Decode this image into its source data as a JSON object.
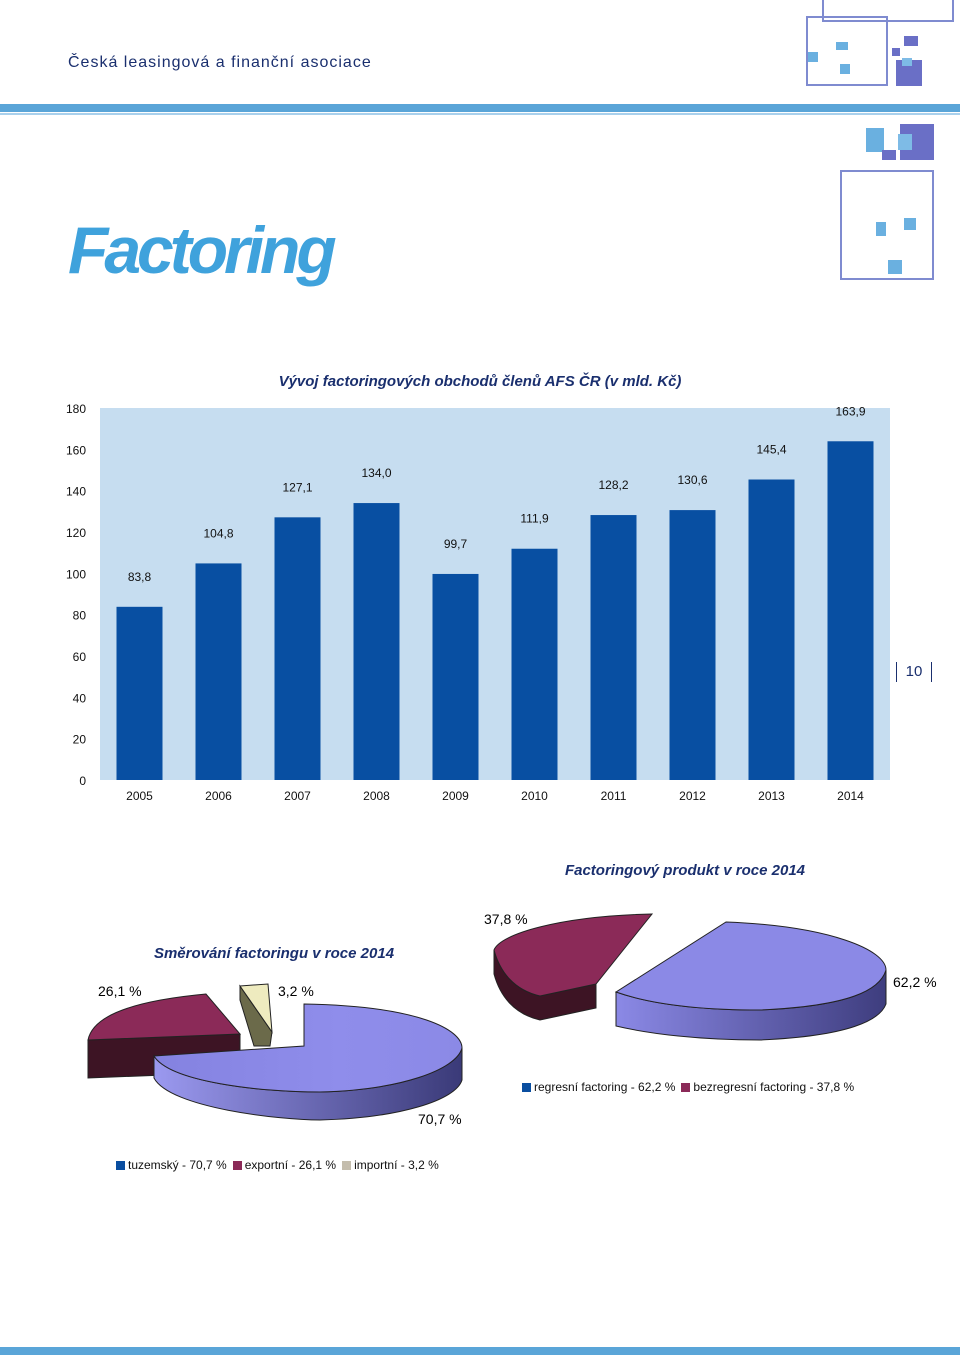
{
  "header": {
    "org_name": "Česká leasingová a finanční asociace"
  },
  "page": {
    "heading": "Factoring",
    "page_number": "10"
  },
  "colors": {
    "bar": "#084fa2",
    "plot_bg": "#c6ddf0",
    "light_purple": "#8b89e6",
    "wine": "#8b2a58",
    "beige": "#eeebbf",
    "accent_blue": "#5aa5d8"
  },
  "chart_data": [
    {
      "type": "bar",
      "title": "Vývoj factoringových obchodů členů AFS ČR (v mld. Kč)",
      "categories": [
        "2005",
        "2006",
        "2007",
        "2008",
        "2009",
        "2010",
        "2011",
        "2012",
        "2013",
        "2014"
      ],
      "values": [
        83.8,
        104.8,
        127.1,
        134.0,
        99.7,
        111.9,
        128.2,
        130.6,
        145.4,
        163.9
      ],
      "data_labels": [
        "83,8",
        "104,8",
        "127,1",
        "134,0",
        "99,7",
        "111,9",
        "128,2",
        "130,6",
        "145,4",
        "163,9"
      ],
      "ylim": [
        0,
        180
      ],
      "yticks": [
        0,
        20,
        40,
        60,
        80,
        100,
        120,
        140,
        160,
        180
      ],
      "grid": false,
      "xlabel": "",
      "ylabel": ""
    },
    {
      "type": "pie",
      "title": "Směrování factoringu v roce 2014",
      "slices": [
        {
          "label": "tuzemský - 70,7 %",
          "value": 70.7,
          "value_label": "70,7 %",
          "color": "#8b89e6"
        },
        {
          "label": "exportní - 26,1 %",
          "value": 26.1,
          "value_label": "26,1 %",
          "color": "#8b2a58"
        },
        {
          "label": "importní - 3,2 %",
          "value": 3.2,
          "value_label": "3,2 %",
          "color": "#eeebbf"
        }
      ],
      "legend_position": "bottom",
      "exploded": true,
      "three_d": true
    },
    {
      "type": "pie",
      "title": "Factoringový produkt v roce 2014",
      "slices": [
        {
          "label": "regresní factoring - 62,2 %",
          "value": 62.2,
          "value_label": "62,2 %",
          "color": "#8b89e6"
        },
        {
          "label": "bezregresní factoring - 37,8 %",
          "value": 37.8,
          "value_label": "37,8 %",
          "color": "#8b2a58"
        }
      ],
      "legend_position": "bottom",
      "exploded": true,
      "three_d": true
    }
  ],
  "legend_colors": {
    "pie1": [
      "#0a4ea0",
      "#8b2a58",
      "#c4bdad"
    ],
    "pie2": [
      "#0a4ea0",
      "#8b2a58"
    ]
  }
}
